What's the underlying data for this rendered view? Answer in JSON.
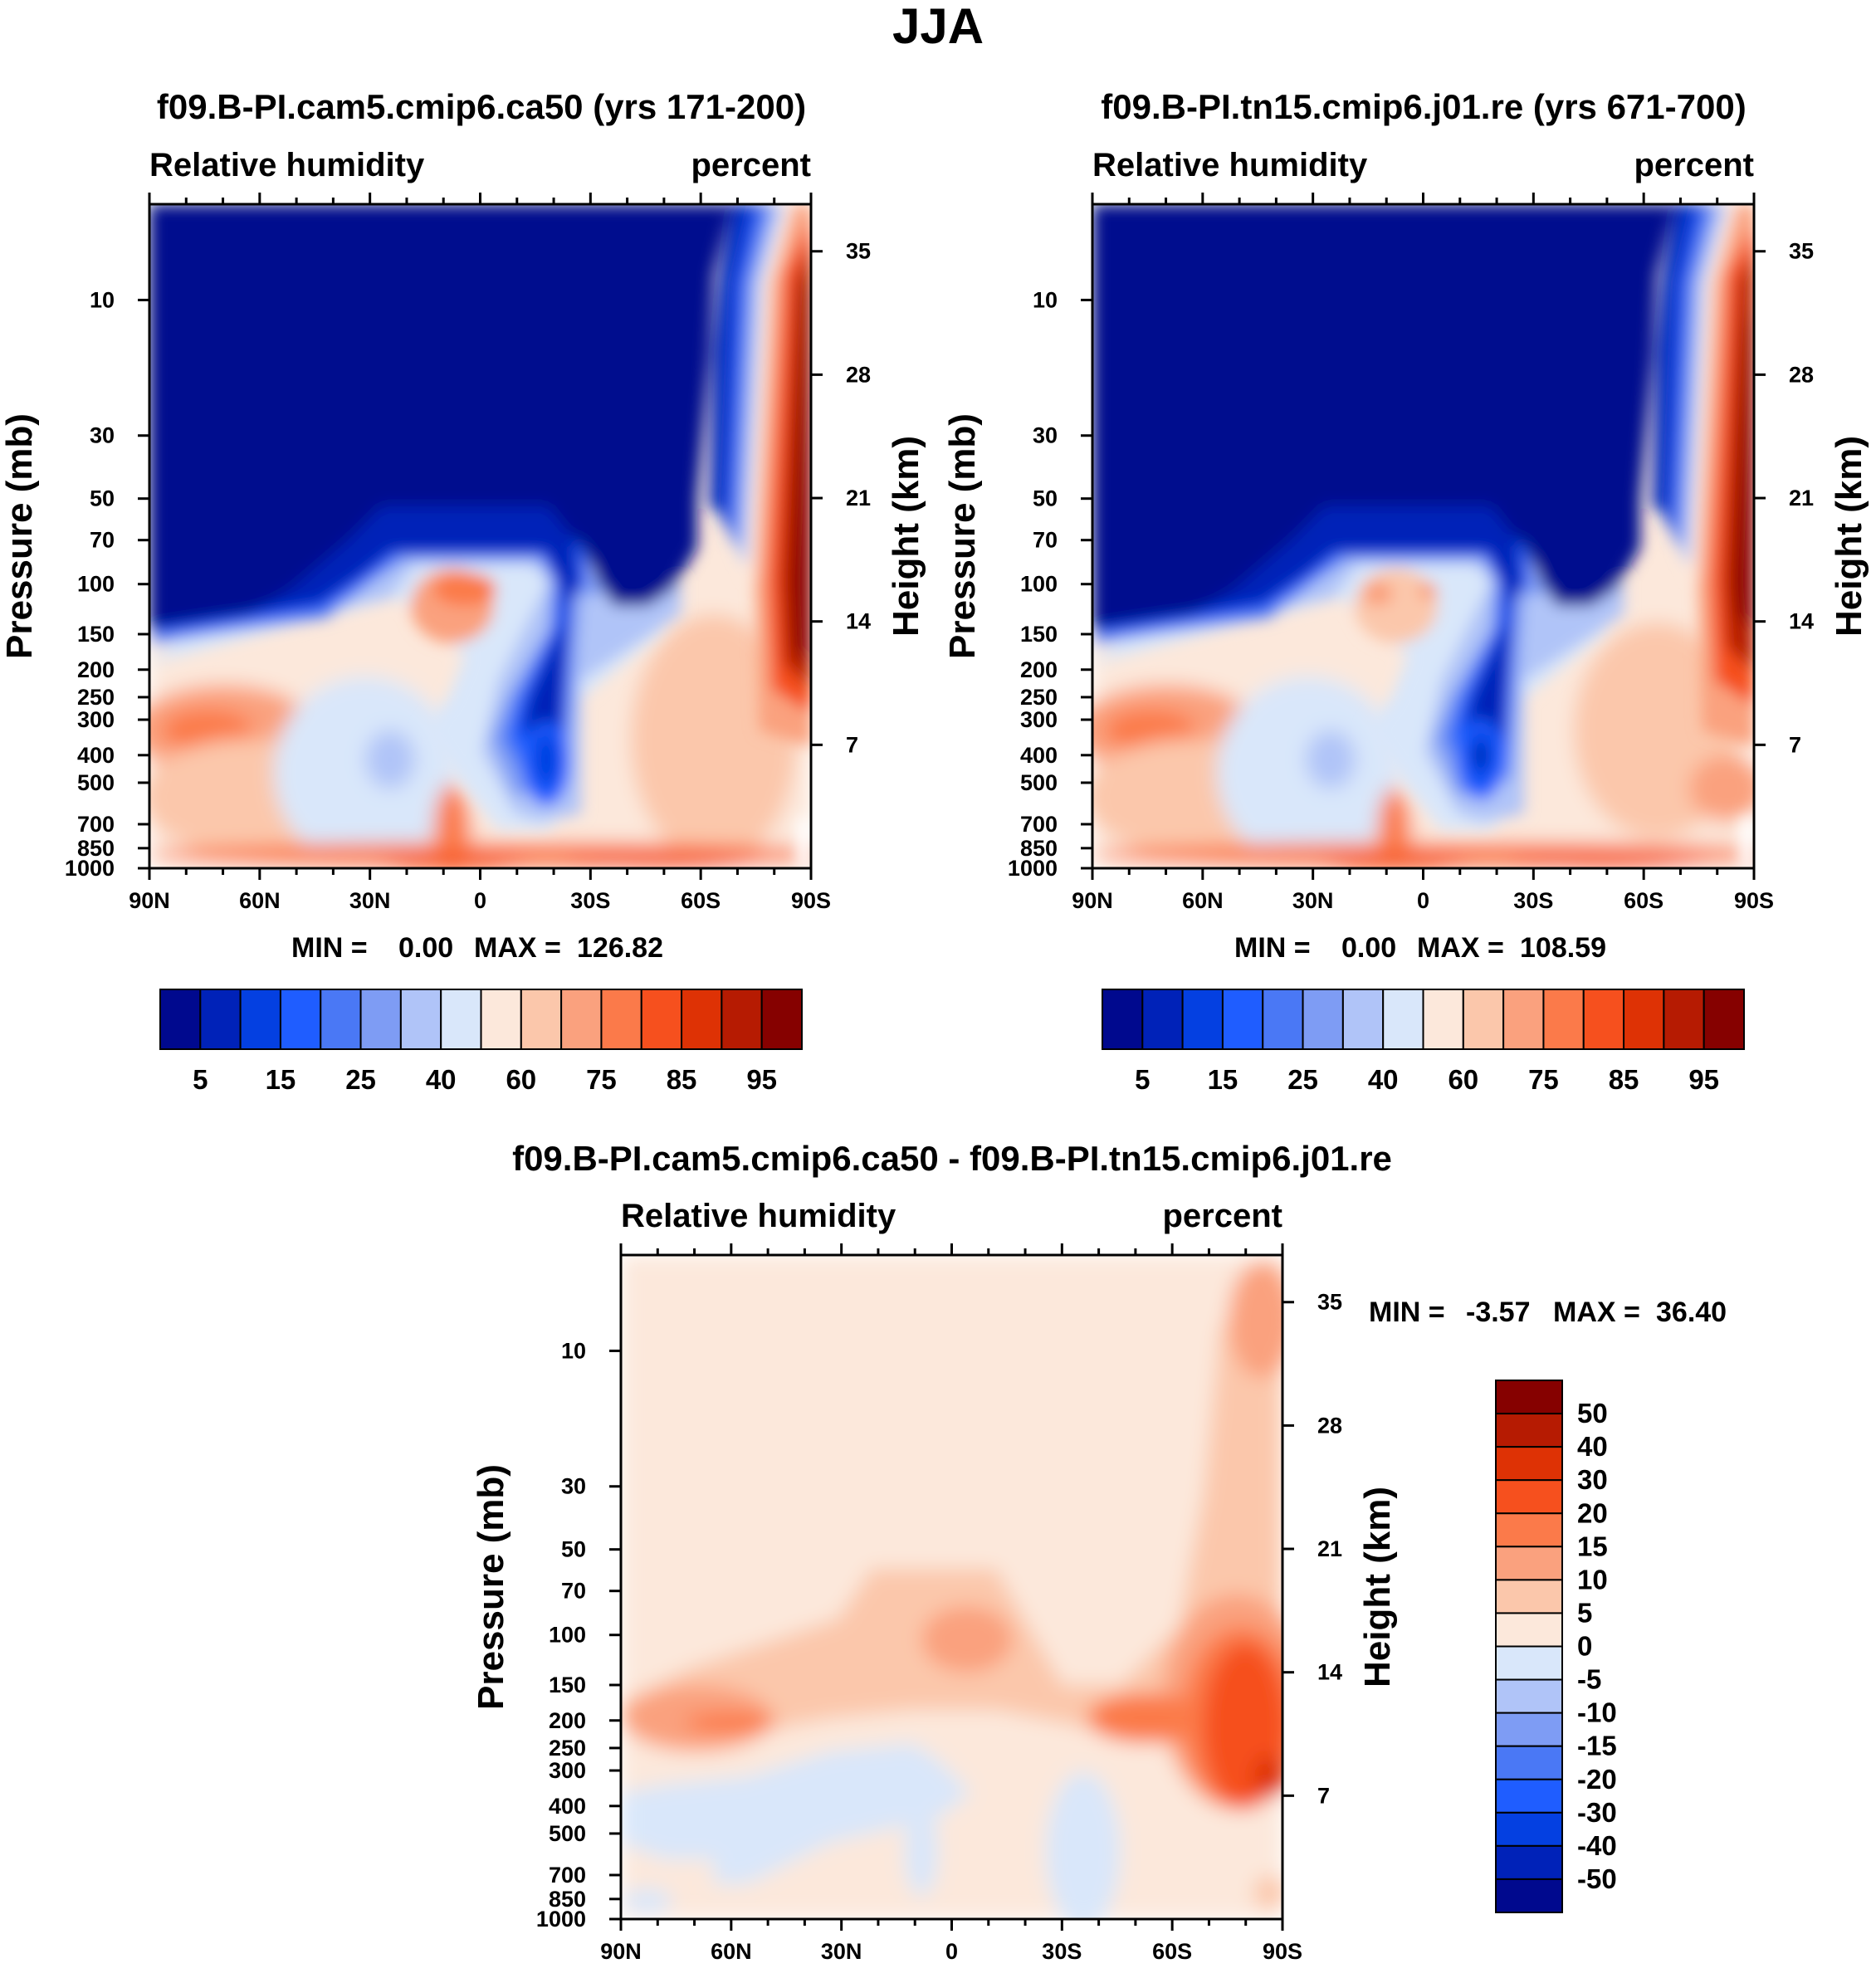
{
  "figure": {
    "title": "JJA"
  },
  "palette": {
    "abs": [
      "#00098e",
      "#0022b8",
      "#0440e1",
      "#1f5dff",
      "#4a78f5",
      "#7e9cf4",
      "#b0c4f8",
      "#d9e7fa",
      "#fce8db",
      "#fbc7ab",
      "#faa17e",
      "#fb7a4a",
      "#f6501e",
      "#de3205",
      "#b61b02",
      "#860100"
    ],
    "diff": [
      "#00098e",
      "#0022b8",
      "#0440e1",
      "#1f5dff",
      "#4a78f5",
      "#7e9cf4",
      "#b0c4f8",
      "#d9e7fa",
      "#fce8db",
      "#fbc7ab",
      "#faa17e",
      "#fb7a4a",
      "#f6501e",
      "#de3205",
      "#b61b02",
      "#860100"
    ]
  },
  "chart_data": [
    {
      "type": "contour",
      "variable": "Relative humidity",
      "title": "f09.B-PI.cam5.cmip6.ca50 (yrs 171-200)",
      "left_label": "Relative humidity",
      "right_label": "percent",
      "ylabel": "Pressure (mb)",
      "y2label": "Height (km)",
      "x_ticks": [
        "90N",
        "60N",
        "30N",
        "0",
        "30S",
        "60S",
        "90S"
      ],
      "y_ticks": [
        "10",
        "30",
        "50",
        "70",
        "100",
        "150",
        "200",
        "250",
        "300",
        "400",
        "500",
        "700",
        "850",
        "1000"
      ],
      "height_ticks": [
        "35",
        "28",
        "21",
        "14",
        "7"
      ],
      "min_label": "MIN =",
      "min_value": "0.00",
      "max_label": "MAX =",
      "max_value": "126.82",
      "colorbar_labels": [
        "5",
        "15",
        "25",
        "40",
        "60",
        "75",
        "85",
        "95"
      ],
      "contour_levels": [
        5,
        10,
        15,
        20,
        25,
        30,
        40,
        50,
        60,
        70,
        75,
        80,
        85,
        90,
        95
      ]
    },
    {
      "type": "contour",
      "variable": "Relative humidity",
      "title": "f09.B-PI.tn15.cmip6.j01.re (yrs 671-700)",
      "left_label": "Relative humidity",
      "right_label": "percent",
      "ylabel": "Pressure (mb)",
      "y2label": "Height (km)",
      "x_ticks": [
        "90N",
        "60N",
        "30N",
        "0",
        "30S",
        "60S",
        "90S"
      ],
      "y_ticks": [
        "10",
        "30",
        "50",
        "70",
        "100",
        "150",
        "200",
        "250",
        "300",
        "400",
        "500",
        "700",
        "850",
        "1000"
      ],
      "height_ticks": [
        "35",
        "28",
        "21",
        "14",
        "7"
      ],
      "min_label": "MIN =",
      "min_value": "0.00",
      "max_label": "MAX =",
      "max_value": "108.59",
      "colorbar_labels": [
        "5",
        "15",
        "25",
        "40",
        "60",
        "75",
        "85",
        "95"
      ],
      "contour_levels": [
        5,
        10,
        15,
        20,
        25,
        30,
        40,
        50,
        60,
        70,
        75,
        80,
        85,
        90,
        95
      ]
    },
    {
      "type": "contour",
      "variable": "Relative humidity",
      "title": "f09.B-PI.cam5.cmip6.ca50 - f09.B-PI.tn15.cmip6.j01.re",
      "left_label": "Relative humidity",
      "right_label": "percent",
      "ylabel": "Pressure (mb)",
      "y2label": "Height (km)",
      "x_ticks": [
        "90N",
        "60N",
        "30N",
        "0",
        "30S",
        "60S",
        "90S"
      ],
      "y_ticks": [
        "10",
        "30",
        "50",
        "70",
        "100",
        "150",
        "200",
        "250",
        "300",
        "400",
        "500",
        "700",
        "850",
        "1000"
      ],
      "height_ticks": [
        "35",
        "28",
        "21",
        "14",
        "7"
      ],
      "min_label": "MIN =",
      "min_value": "-3.57",
      "max_label": "MAX =",
      "max_value": "36.40",
      "colorbar_labels": [
        "50",
        "40",
        "30",
        "20",
        "15",
        "10",
        "5",
        "0",
        "-5",
        "-10",
        "-15",
        "-20",
        "-30",
        "-40",
        "-50"
      ],
      "contour_levels": [
        -50,
        -40,
        -30,
        -20,
        -15,
        -10,
        -5,
        0,
        5,
        10,
        15,
        20,
        30,
        40,
        50
      ]
    }
  ]
}
